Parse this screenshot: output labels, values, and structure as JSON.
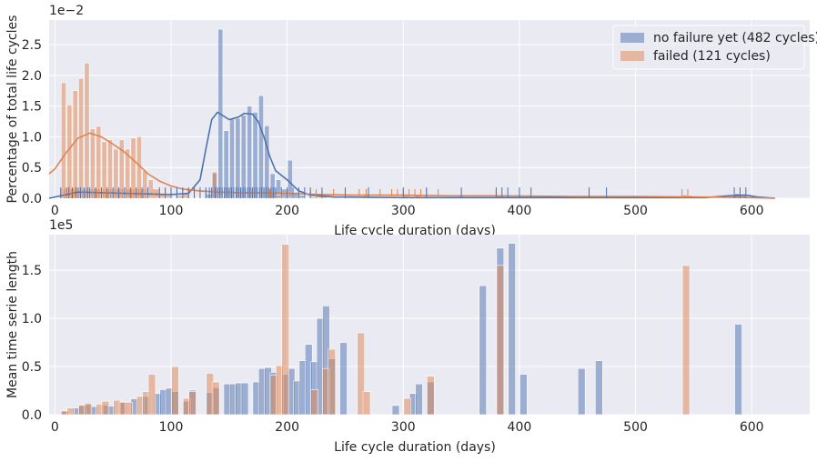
{
  "colors": {
    "panel_bg": "#eaeaf2",
    "grid": "#ffffff",
    "blue": "#4c72b0",
    "orange": "#dd8452",
    "legend_bg": "#eaeaf2",
    "legend_border": "#ffffff"
  },
  "chart_data": [
    {
      "type": "bar",
      "subtype": "histogram_with_kde_and_rug",
      "ylabel": "Percentage of total life cycles",
      "xlabel": "Life cycle duration (days)",
      "offset_text": "1e−2",
      "xlim": [
        -5,
        650
      ],
      "ylim": [
        0,
        0.029
      ],
      "xticks": [
        0,
        100,
        200,
        300,
        400,
        500,
        600
      ],
      "yticks": [
        0,
        0.5,
        1.0,
        1.5,
        2.0,
        2.5
      ],
      "ytick_labels": [
        "0.0",
        "0.5",
        "1.0",
        "1.5",
        "2.0",
        "2.5"
      ],
      "grid": true,
      "legend": "top-right",
      "bin_width": 5,
      "series": [
        {
          "name": "no failure yet (482 cycles)",
          "color": "blue",
          "bins": [
            [
              0,
              0.0001
            ],
            [
              5,
              0.0002
            ],
            [
              10,
              0.0002
            ],
            [
              15,
              0.0001
            ],
            [
              20,
              0.0001
            ],
            [
              25,
              0.0001
            ],
            [
              30,
              0.0001
            ],
            [
              35,
              0.0001
            ],
            [
              40,
              0.0001
            ],
            [
              45,
              0.0001
            ],
            [
              50,
              0.0001
            ],
            [
              55,
              0.0001
            ],
            [
              60,
              0.0001
            ],
            [
              65,
              0.0001
            ],
            [
              70,
              0.0001
            ],
            [
              75,
              0.0001
            ],
            [
              80,
              0.0001
            ],
            [
              85,
              0.0001
            ],
            [
              90,
              0.0001
            ],
            [
              95,
              0.0001
            ],
            [
              100,
              0.0001
            ],
            [
              105,
              0.0001
            ],
            [
              110,
              0.0001
            ],
            [
              115,
              0.0001
            ],
            [
              120,
              0.0001
            ],
            [
              125,
              0.0001
            ],
            [
              130,
              0.0007
            ],
            [
              135,
              0.0041
            ],
            [
              140,
              0.0275
            ],
            [
              145,
              0.011
            ],
            [
              150,
              0.013
            ],
            [
              155,
              0.013
            ],
            [
              160,
              0.0135
            ],
            [
              165,
              0.015
            ],
            [
              170,
              0.014
            ],
            [
              175,
              0.0167
            ],
            [
              180,
              0.0118
            ],
            [
              185,
              0.004
            ],
            [
              190,
              0.003
            ],
            [
              195,
              0.0015
            ],
            [
              200,
              0.0062
            ],
            [
              205,
              0.001
            ],
            [
              210,
              0.0005
            ],
            [
              215,
              0.0001
            ],
            [
              220,
              0.0002
            ],
            [
              225,
              0.0001
            ],
            [
              250,
              0.0001
            ],
            [
              300,
              0.0001
            ],
            [
              320,
              0.0001
            ],
            [
              585,
              0.0008
            ],
            [
              590,
              0.0007
            ]
          ],
          "kde": [
            [
              -5,
              0
            ],
            [
              0,
              0.0002
            ],
            [
              20,
              0.001
            ],
            [
              60,
              0.0008
            ],
            [
              100,
              0.0006
            ],
            [
              115,
              0.0008
            ],
            [
              125,
              0.003
            ],
            [
              130,
              0.008
            ],
            [
              135,
              0.0128
            ],
            [
              140,
              0.014
            ],
            [
              150,
              0.0128
            ],
            [
              158,
              0.0132
            ],
            [
              163,
              0.0138
            ],
            [
              170,
              0.0137
            ],
            [
              175,
              0.0125
            ],
            [
              180,
              0.01
            ],
            [
              185,
              0.0068
            ],
            [
              190,
              0.0045
            ],
            [
              200,
              0.003
            ],
            [
              210,
              0.0012
            ],
            [
              220,
              0.0005
            ],
            [
              240,
              0.0002
            ],
            [
              300,
              0.0001
            ],
            [
              400,
              0.0001
            ],
            [
              500,
              0.0001
            ],
            [
              560,
              0.0001
            ],
            [
              580,
              0.0004
            ],
            [
              595,
              0.0005
            ],
            [
              605,
              0.0002
            ],
            [
              620,
              0
            ]
          ],
          "rug": [
            5,
            10,
            12,
            15,
            18,
            20,
            22,
            25,
            28,
            30,
            35,
            40,
            45,
            50,
            55,
            60,
            65,
            70,
            75,
            80,
            90,
            95,
            100,
            105,
            110,
            115,
            120,
            125,
            130,
            133,
            135,
            138,
            140,
            142,
            144,
            146,
            148,
            150,
            152,
            154,
            156,
            158,
            160,
            162,
            164,
            166,
            168,
            170,
            172,
            174,
            176,
            178,
            180,
            182,
            184,
            186,
            188,
            190,
            195,
            200,
            205,
            210,
            215,
            220,
            230,
            250,
            270,
            300,
            320,
            350,
            380,
            385,
            390,
            400,
            410,
            460,
            475,
            585,
            590,
            595
          ]
        },
        {
          "name": "failed (121 cycles)",
          "color": "orange",
          "bins": [
            [
              5,
              0.0188
            ],
            [
              10,
              0.0152
            ],
            [
              15,
              0.0175
            ],
            [
              20,
              0.0195
            ],
            [
              25,
              0.022
            ],
            [
              30,
              0.0113
            ],
            [
              35,
              0.0117
            ],
            [
              40,
              0.0092
            ],
            [
              45,
              0.0095
            ],
            [
              50,
              0.008
            ],
            [
              55,
              0.0095
            ],
            [
              60,
              0.008
            ],
            [
              65,
              0.0098
            ],
            [
              70,
              0.01
            ],
            [
              75,
              0.0045
            ],
            [
              80,
              0.003
            ],
            [
              85,
              0.0015
            ],
            [
              90,
              0.0008
            ],
            [
              95,
              0.0005
            ],
            [
              105,
              0.0005
            ],
            [
              110,
              0.0008
            ],
            [
              135,
              0.0043
            ],
            [
              140,
              0.0003
            ],
            [
              185,
              0.0008
            ],
            [
              190,
              0.0005
            ],
            [
              225,
              0.0008
            ],
            [
              230,
              0.0006
            ],
            [
              240,
              0.0003
            ],
            [
              265,
              0.0005
            ],
            [
              270,
              0.0003
            ],
            [
              280,
              0.0002
            ],
            [
              295,
              0.0002
            ],
            [
              300,
              0.0005
            ],
            [
              310,
              0.0005
            ],
            [
              315,
              0.0003
            ],
            [
              380,
              0.0005
            ],
            [
              540,
              0.0006
            ],
            [
              545,
              0.0005
            ]
          ],
          "kde": [
            [
              -5,
              0.004
            ],
            [
              0,
              0.0048
            ],
            [
              10,
              0.0075
            ],
            [
              20,
              0.0098
            ],
            [
              30,
              0.0106
            ],
            [
              40,
              0.01
            ],
            [
              50,
              0.0088
            ],
            [
              60,
              0.0075
            ],
            [
              70,
              0.0058
            ],
            [
              80,
              0.004
            ],
            [
              90,
              0.0028
            ],
            [
              100,
              0.002
            ],
            [
              110,
              0.0015
            ],
            [
              125,
              0.0012
            ],
            [
              140,
              0.001
            ],
            [
              160,
              0.0009
            ],
            [
              180,
              0.0009
            ],
            [
              200,
              0.0008
            ],
            [
              230,
              0.0006
            ],
            [
              260,
              0.0005
            ],
            [
              300,
              0.0005
            ],
            [
              340,
              0.0004
            ],
            [
              380,
              0.0004
            ],
            [
              450,
              0.0003
            ],
            [
              500,
              0.0003
            ],
            [
              550,
              0.0002
            ],
            [
              600,
              0.0001
            ],
            [
              620,
              0
            ]
          ],
          "rug": [
            5,
            8,
            10,
            12,
            14,
            16,
            18,
            20,
            22,
            24,
            26,
            28,
            30,
            32,
            34,
            36,
            38,
            40,
            42,
            44,
            46,
            48,
            50,
            52,
            54,
            56,
            58,
            60,
            62,
            64,
            66,
            68,
            70,
            72,
            74,
            76,
            78,
            80,
            85,
            90,
            95,
            100,
            105,
            110,
            115,
            120,
            130,
            135,
            140,
            150,
            160,
            170,
            180,
            185,
            190,
            200,
            210,
            220,
            225,
            230,
            240,
            250,
            262,
            268,
            280,
            290,
            295,
            300,
            305,
            310,
            315,
            320,
            330,
            380,
            540,
            545
          ]
        }
      ]
    },
    {
      "type": "bar",
      "ylabel": "Mean time serie length",
      "xlabel": "Life cycle duration (days)",
      "offset_text": "1e5",
      "xlim": [
        -5,
        650
      ],
      "ylim": [
        0,
        187000
      ],
      "xticks": [
        0,
        100,
        200,
        300,
        400,
        500,
        600
      ],
      "yticks": [
        0,
        0.5,
        1.0,
        1.5
      ],
      "ytick_labels": [
        "0.0",
        "0.5",
        "1.0",
        "1.5"
      ],
      "grid": true,
      "bin_width": 7,
      "series": [
        {
          "name": "no failure yet (482 cycles)",
          "color": "blue",
          "bars": [
            [
              5,
              3500
            ],
            [
              15,
              7000
            ],
            [
              20,
              9500
            ],
            [
              25,
              10500
            ],
            [
              30,
              8500
            ],
            [
              40,
              10000
            ],
            [
              45,
              9000
            ],
            [
              55,
              13500
            ],
            [
              65,
              16500
            ],
            [
              75,
              19000
            ],
            [
              85,
              22000
            ],
            [
              90,
              26000
            ],
            [
              95,
              27500
            ],
            [
              100,
              24000
            ],
            [
              110,
              14000
            ],
            [
              115,
              25500
            ],
            [
              130,
              23000
            ],
            [
              135,
              28000
            ],
            [
              145,
              32000
            ],
            [
              150,
              32000
            ],
            [
              155,
              33000
            ],
            [
              160,
              33000
            ],
            [
              170,
              34000
            ],
            [
              175,
              48000
            ],
            [
              180,
              49000
            ],
            [
              185,
              44000
            ],
            [
              195,
              42000
            ],
            [
              200,
              48000
            ],
            [
              205,
              35000
            ],
            [
              210,
              56000
            ],
            [
              215,
              73000
            ],
            [
              220,
              55000
            ],
            [
              225,
              100000
            ],
            [
              230,
              113000
            ],
            [
              235,
              58000
            ],
            [
              245,
              75000
            ],
            [
              290,
              9500
            ],
            [
              305,
              22000
            ],
            [
              310,
              32000
            ],
            [
              320,
              34000
            ],
            [
              365,
              134000
            ],
            [
              380,
              173000
            ],
            [
              390,
              178000
            ],
            [
              400,
              42000
            ],
            [
              450,
              48000
            ],
            [
              465,
              56000
            ],
            [
              585,
              94000
            ]
          ]
        },
        {
          "name": "failed (121 cycles)",
          "color": "orange",
          "bars": [
            [
              5,
              4000
            ],
            [
              10,
              7000
            ],
            [
              20,
              10000
            ],
            [
              25,
              12000
            ],
            [
              35,
              11000
            ],
            [
              40,
              14000
            ],
            [
              50,
              15000
            ],
            [
              55,
              13000
            ],
            [
              60,
              13000
            ],
            [
              70,
              19000
            ],
            [
              75,
              24000
            ],
            [
              80,
              42000
            ],
            [
              100,
              50000
            ],
            [
              110,
              17000
            ],
            [
              115,
              24000
            ],
            [
              130,
              43000
            ],
            [
              135,
              34000
            ],
            [
              185,
              41000
            ],
            [
              190,
              51000
            ],
            [
              195,
              177000
            ],
            [
              220,
              26000
            ],
            [
              230,
              48000
            ],
            [
              235,
              68000
            ],
            [
              260,
              85000
            ],
            [
              265,
              24000
            ],
            [
              300,
              17000
            ],
            [
              320,
              40000
            ],
            [
              380,
              155000
            ],
            [
              540,
              155000
            ]
          ]
        }
      ]
    }
  ]
}
